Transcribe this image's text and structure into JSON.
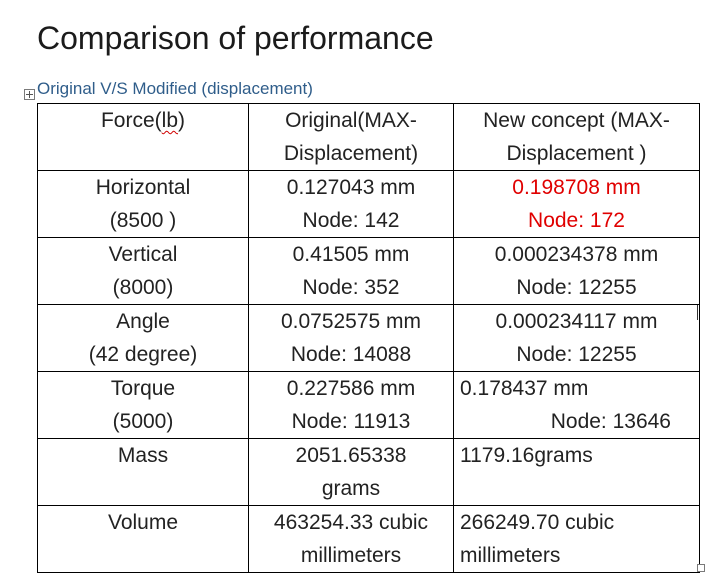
{
  "title": "Comparison of performance",
  "caption": "Original V/S Modified (displacement)",
  "colors": {
    "highlight": "#e00000",
    "caption": "#2f5d8a"
  },
  "table": {
    "header": {
      "force_prefix": "Force(",
      "force_unit": "lb",
      "force_suffix": ")",
      "original_line1": "Original(MAX-",
      "original_line2": "Displacement)",
      "new_line1": "New concept (MAX-",
      "new_line2": "Displacement )"
    },
    "rows": [
      {
        "label1": "Horizontal",
        "label2": "(8500 )",
        "orig1": "0.127043 mm",
        "orig2": "Node: 142",
        "new1": "0.198708 mm",
        "new2": "Node: 172"
      },
      {
        "label1": "Vertical",
        "label2": "(8000)",
        "orig1": "0.41505 mm",
        "orig2": "Node: 352",
        "new1": "0.000234378 mm",
        "new2": "Node: 12255"
      },
      {
        "label1": "Angle",
        "label2": "(42 degree)",
        "orig1": "0.0752575 mm",
        "orig2": "Node: 14088",
        "new1": "0.000234117 mm",
        "new2": "Node: 12255"
      },
      {
        "label1": "Torque",
        "label2": "(5000)",
        "orig1": "0.227586 mm",
        "orig2": "Node: 11913",
        "new1": "0.178437 mm",
        "new2": "Node: 13646"
      },
      {
        "label1": "Mass",
        "label2": "",
        "orig1": "2051.65338",
        "orig2": "grams",
        "new1": "1179.16grams",
        "new2": ""
      },
      {
        "label1": "Volume",
        "label2": "",
        "orig1": "463254.33 cubic",
        "orig2": "millimeters",
        "new1": "266249.70 cubic",
        "new2": "millimeters"
      }
    ]
  }
}
